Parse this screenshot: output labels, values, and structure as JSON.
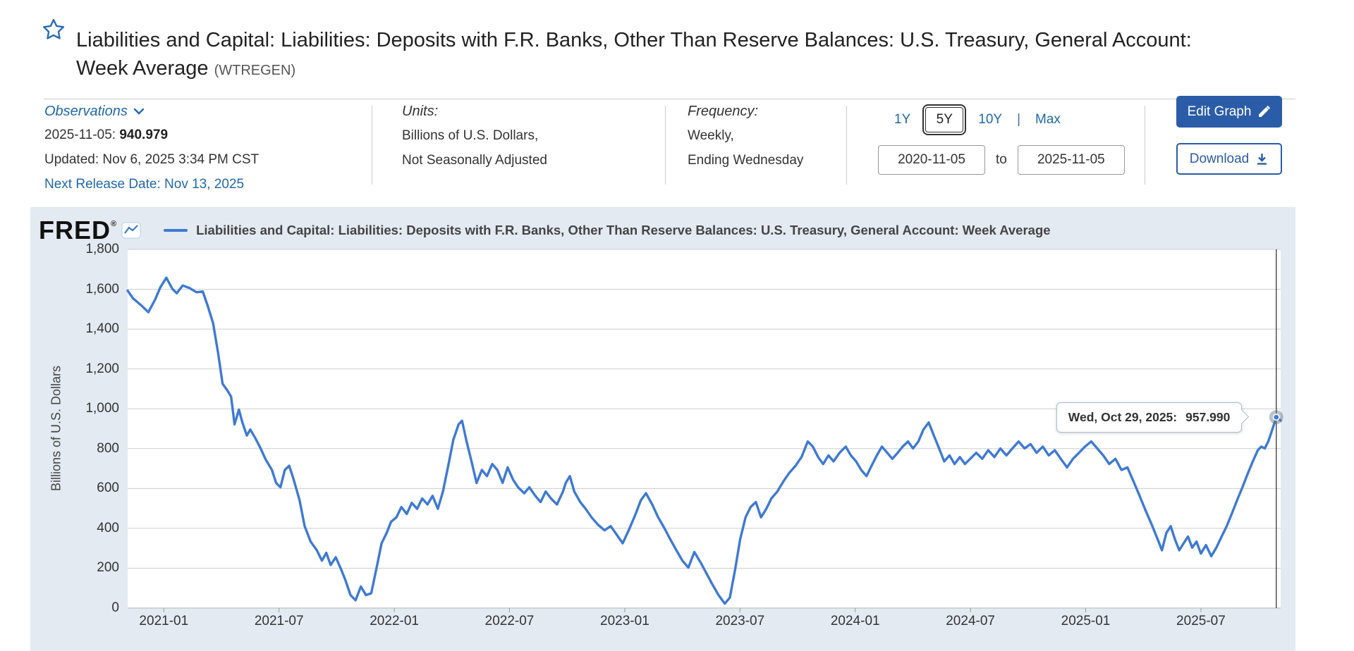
{
  "colors": {
    "link_blue": "#2268b0",
    "button_blue": "#2b5ca8",
    "chart_bg": "#e3eaf2"
  },
  "header": {
    "title_main": "Liabilities and Capital: Liabilities: Deposits with F.R. Banks, Other Than Reserve Balances: U.S. Treasury, General Account: Week Average",
    "title_ticker": "(WTREGEN)"
  },
  "meta": {
    "observations": {
      "label": "Observations",
      "latest_date": "2025-11-05:",
      "latest_value": "940.979",
      "updated": "Updated: Nov 6, 2025 3:34 PM CST",
      "next_release": "Next Release Date: Nov 13, 2025"
    },
    "units": {
      "label": "Units:",
      "line1": "Billions of U.S. Dollars,",
      "line2": "Not Seasonally Adjusted"
    },
    "frequency": {
      "label": "Frequency:",
      "line1": "Weekly,",
      "line2": "Ending Wednesday"
    }
  },
  "controls": {
    "ranges": [
      "1Y",
      "5Y",
      "10Y",
      "Max"
    ],
    "selected_range": "5Y",
    "separator": "|",
    "date_from": "2020-11-05",
    "to_label": "to",
    "date_to": "2025-11-05",
    "edit_graph_label": "Edit Graph",
    "download_label": "Download"
  },
  "fred_logo": {
    "text": "FRED",
    "reg": "®"
  },
  "chart_data": {
    "type": "line",
    "title": "Liabilities and Capital: Liabilities: Deposits with F.R. Banks, Other Than Reserve Balances: U.S. Treasury, General Account: Week Average",
    "ylabel": "Billions of U.S. Dollars",
    "ylim": [
      0,
      1800
    ],
    "yticks": [
      0,
      200,
      400,
      600,
      800,
      1000,
      1200,
      1400,
      1600,
      1800
    ],
    "ytick_labels": [
      "0",
      "200",
      "400",
      "600",
      "800",
      "1,000",
      "1,200",
      "1,400",
      "1,600",
      "1,800"
    ],
    "xticks": [
      2021.0,
      2021.5,
      2022.0,
      2022.5,
      2023.0,
      2023.5,
      2024.0,
      2024.5,
      2025.0,
      2025.5
    ],
    "xtick_labels": [
      "2021-01",
      "2021-07",
      "2022-01",
      "2022-07",
      "2023-01",
      "2023-07",
      "2024-01",
      "2024-07",
      "2025-01",
      "2025-07"
    ],
    "x_range": [
      2020.843,
      2025.846
    ],
    "grid": "horizontal",
    "legend_position": "top",
    "line_color": "#3e79d5",
    "tooltip": {
      "label": "Wed, Oct 29, 2025:",
      "value": "957.990",
      "t": 2025.827,
      "v": 957.99
    },
    "series": [
      {
        "name": "Liabilities and Capital: Liabilities: Deposits with F.R. Banks, Other Than Reserve Balances: U.S. Treasury, General Account: Week Average",
        "points": [
          [
            2020.843,
            1593
          ],
          [
            2020.866,
            1555
          ],
          [
            2020.906,
            1515
          ],
          [
            2020.933,
            1485
          ],
          [
            2020.963,
            1550
          ],
          [
            2020.985,
            1610
          ],
          [
            2021.011,
            1658
          ],
          [
            2021.037,
            1602
          ],
          [
            2021.056,
            1580
          ],
          [
            2021.082,
            1619
          ],
          [
            2021.112,
            1606
          ],
          [
            2021.142,
            1585
          ],
          [
            2021.169,
            1589
          ],
          [
            2021.191,
            1515
          ],
          [
            2021.214,
            1429
          ],
          [
            2021.236,
            1277
          ],
          [
            2021.255,
            1126
          ],
          [
            2021.274,
            1095
          ],
          [
            2021.292,
            1061
          ],
          [
            2021.307,
            922
          ],
          [
            2021.326,
            996
          ],
          [
            2021.341,
            931
          ],
          [
            2021.36,
            866
          ],
          [
            2021.375,
            896
          ],
          [
            2021.397,
            853
          ],
          [
            2021.42,
            801
          ],
          [
            2021.442,
            745
          ],
          [
            2021.469,
            693
          ],
          [
            2021.487,
            628
          ],
          [
            2021.506,
            606
          ],
          [
            2021.525,
            693
          ],
          [
            2021.544,
            714
          ],
          [
            2021.562,
            650
          ],
          [
            2021.589,
            541
          ],
          [
            2021.611,
            411
          ],
          [
            2021.637,
            333
          ],
          [
            2021.664,
            290
          ],
          [
            2021.686,
            238
          ],
          [
            2021.705,
            277
          ],
          [
            2021.724,
            216
          ],
          [
            2021.746,
            255
          ],
          [
            2021.769,
            195
          ],
          [
            2021.787,
            143
          ],
          [
            2021.81,
            65
          ],
          [
            2021.832,
            39
          ],
          [
            2021.855,
            108
          ],
          [
            2021.877,
            65
          ],
          [
            2021.9,
            74
          ],
          [
            2021.922,
            195
          ],
          [
            2021.945,
            325
          ],
          [
            2021.967,
            377
          ],
          [
            2021.986,
            433
          ],
          [
            2022.009,
            455
          ],
          [
            2022.031,
            507
          ],
          [
            2022.054,
            472
          ],
          [
            2022.076,
            528
          ],
          [
            2022.099,
            498
          ],
          [
            2022.121,
            550
          ],
          [
            2022.144,
            520
          ],
          [
            2022.166,
            563
          ],
          [
            2022.189,
            498
          ],
          [
            2022.211,
            585
          ],
          [
            2022.234,
            714
          ],
          [
            2022.256,
            844
          ],
          [
            2022.279,
            922
          ],
          [
            2022.294,
            940
          ],
          [
            2022.312,
            844
          ],
          [
            2022.335,
            736
          ],
          [
            2022.357,
            628
          ],
          [
            2022.38,
            693
          ],
          [
            2022.402,
            662
          ],
          [
            2022.425,
            723
          ],
          [
            2022.447,
            693
          ],
          [
            2022.47,
            628
          ],
          [
            2022.492,
            706
          ],
          [
            2022.515,
            645
          ],
          [
            2022.537,
            606
          ],
          [
            2022.564,
            576
          ],
          [
            2022.586,
            606
          ],
          [
            2022.612,
            563
          ],
          [
            2022.635,
            532
          ],
          [
            2022.657,
            585
          ],
          [
            2022.68,
            550
          ],
          [
            2022.706,
            520
          ],
          [
            2022.732,
            585
          ],
          [
            2022.744,
            628
          ],
          [
            2022.762,
            662
          ],
          [
            2022.781,
            585
          ],
          [
            2022.807,
            532
          ],
          [
            2022.83,
            498
          ],
          [
            2022.856,
            455
          ],
          [
            2022.882,
            420
          ],
          [
            2022.912,
            390
          ],
          [
            2022.939,
            411
          ],
          [
            2022.965,
            368
          ],
          [
            2022.991,
            325
          ],
          [
            2023.017,
            390
          ],
          [
            2023.044,
            463
          ],
          [
            2023.07,
            541
          ],
          [
            2023.092,
            576
          ],
          [
            2023.119,
            520
          ],
          [
            2023.145,
            455
          ],
          [
            2023.171,
            403
          ],
          [
            2023.197,
            346
          ],
          [
            2023.224,
            290
          ],
          [
            2023.25,
            238
          ],
          [
            2023.276,
            203
          ],
          [
            2023.302,
            281
          ],
          [
            2023.329,
            229
          ],
          [
            2023.355,
            173
          ],
          [
            2023.381,
            117
          ],
          [
            2023.407,
            65
          ],
          [
            2023.434,
            22
          ],
          [
            2023.456,
            52
          ],
          [
            2023.479,
            195
          ],
          [
            2023.501,
            346
          ],
          [
            2023.524,
            455
          ],
          [
            2023.546,
            507
          ],
          [
            2023.569,
            532
          ],
          [
            2023.591,
            455
          ],
          [
            2023.614,
            498
          ],
          [
            2023.636,
            550
          ],
          [
            2023.662,
            585
          ],
          [
            2023.689,
            637
          ],
          [
            2023.715,
            680
          ],
          [
            2023.741,
            714
          ],
          [
            2023.767,
            758
          ],
          [
            2023.794,
            836
          ],
          [
            2023.816,
            810
          ],
          [
            2023.839,
            758
          ],
          [
            2023.861,
            723
          ],
          [
            2023.884,
            766
          ],
          [
            2023.906,
            736
          ],
          [
            2023.932,
            779
          ],
          [
            2023.959,
            810
          ],
          [
            2023.981,
            766
          ],
          [
            2024.004,
            736
          ],
          [
            2024.026,
            693
          ],
          [
            2024.049,
            662
          ],
          [
            2024.071,
            714
          ],
          [
            2024.094,
            766
          ],
          [
            2024.116,
            810
          ],
          [
            2024.139,
            779
          ],
          [
            2024.161,
            749
          ],
          [
            2024.184,
            779
          ],
          [
            2024.206,
            810
          ],
          [
            2024.229,
            836
          ],
          [
            2024.251,
            801
          ],
          [
            2024.274,
            836
          ],
          [
            2024.296,
            896
          ],
          [
            2024.319,
            931
          ],
          [
            2024.341,
            866
          ],
          [
            2024.364,
            801
          ],
          [
            2024.386,
            736
          ],
          [
            2024.409,
            766
          ],
          [
            2024.431,
            723
          ],
          [
            2024.454,
            758
          ],
          [
            2024.476,
            723
          ],
          [
            2024.499,
            749
          ],
          [
            2024.525,
            779
          ],
          [
            2024.551,
            749
          ],
          [
            2024.577,
            792
          ],
          [
            2024.604,
            758
          ],
          [
            2024.63,
            801
          ],
          [
            2024.656,
            766
          ],
          [
            2024.682,
            801
          ],
          [
            2024.709,
            836
          ],
          [
            2024.735,
            801
          ],
          [
            2024.761,
            823
          ],
          [
            2024.787,
            779
          ],
          [
            2024.814,
            810
          ],
          [
            2024.84,
            766
          ],
          [
            2024.866,
            792
          ],
          [
            2024.892,
            749
          ],
          [
            2024.919,
            706
          ],
          [
            2024.945,
            749
          ],
          [
            2024.971,
            779
          ],
          [
            2024.997,
            810
          ],
          [
            2025.024,
            836
          ],
          [
            2025.05,
            801
          ],
          [
            2025.076,
            766
          ],
          [
            2025.102,
            723
          ],
          [
            2025.129,
            749
          ],
          [
            2025.155,
            693
          ],
          [
            2025.181,
            706
          ],
          [
            2025.207,
            637
          ],
          [
            2025.234,
            563
          ],
          [
            2025.26,
            489
          ],
          [
            2025.286,
            420
          ],
          [
            2025.312,
            346
          ],
          [
            2025.331,
            290
          ],
          [
            2025.35,
            377
          ],
          [
            2025.369,
            411
          ],
          [
            2025.387,
            346
          ],
          [
            2025.406,
            290
          ],
          [
            2025.425,
            325
          ],
          [
            2025.444,
            359
          ],
          [
            2025.462,
            303
          ],
          [
            2025.481,
            333
          ],
          [
            2025.5,
            273
          ],
          [
            2025.522,
            316
          ],
          [
            2025.545,
            260
          ],
          [
            2025.567,
            303
          ],
          [
            2025.59,
            359
          ],
          [
            2025.612,
            411
          ],
          [
            2025.635,
            476
          ],
          [
            2025.657,
            541
          ],
          [
            2025.68,
            606
          ],
          [
            2025.702,
            671
          ],
          [
            2025.725,
            736
          ],
          [
            2025.747,
            792
          ],
          [
            2025.762,
            810
          ],
          [
            2025.777,
            801
          ],
          [
            2025.792,
            836
          ],
          [
            2025.808,
            890
          ],
          [
            2025.827,
            957.99
          ],
          [
            2025.846,
            940.979
          ]
        ]
      }
    ]
  }
}
